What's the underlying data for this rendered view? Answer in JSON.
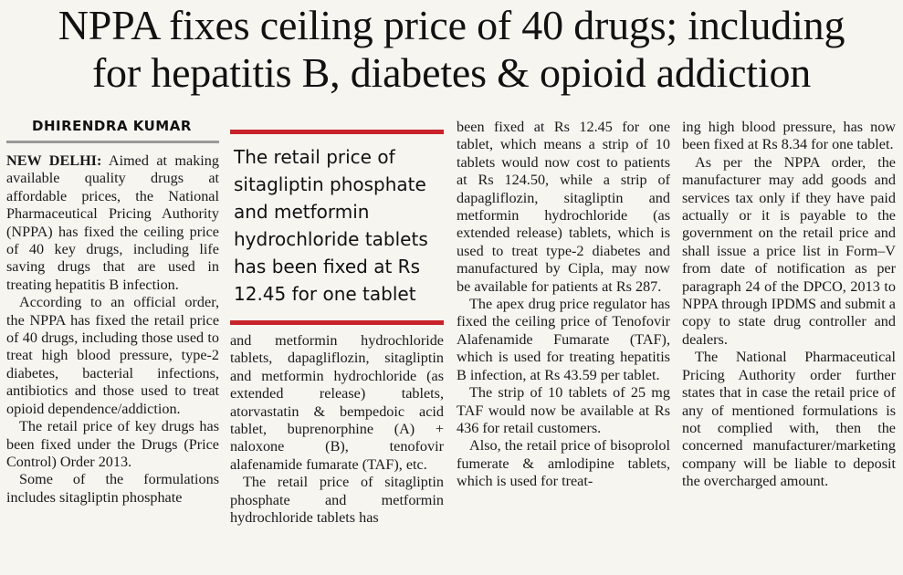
{
  "headline": {
    "line1": "NPPA fixes ceiling price of 40 drugs; including",
    "line2": "for hepatitis B, diabetes & opioid addiction"
  },
  "byline": "DHIRENDRA KUMAR",
  "dateline": "NEW DELHI:",
  "pullquote": "The retail price of sitagliptin phosphate and metformin hydrochloride tablets has been fixed at Rs 12.45 for one tablet",
  "col1": {
    "p1": " Aimed at making available quality drugs at affordable prices, the National Pharmaceutical Pricing Authority (NPPA) has fixed the ceiling price of 40 key drugs, including life saving drugs that are used in treating hepatitis B infection.",
    "p2": "According to an official order, the NPPA has fixed the retail price of 40 drugs, including those used to treat high blood pressure, type-2 diabetes, bacterial infections, antibiotics and those used to treat opioid dependence/addiction.",
    "p3": "The retail price of key drugs has been fixed under the Drugs (Price Control) Order 2013.",
    "p4": "Some of the formulations includes sitagliptin phosphate"
  },
  "col2": {
    "p1": "and metformin hydrochloride tablets, dapagliflozin, sitagliptin and metformin hydrochloride (as extended release) tablets, atorvastatin & bempedoic acid tablet, buprenorphine (A) + naloxone (B), tenofovir alafenamide fumarate (TAF), etc.",
    "p2": "The retail price of sitagliptin phosphate and metformin hydrochloride tablets has"
  },
  "col3": {
    "p1": "been fixed at Rs 12.45 for one tablet, which means a strip of 10 tablets would now cost to patients at Rs 124.50, while a strip of dapagliflozin, sitagliptin and metformin hydrochloride (as extended release) tablets, which is used to treat type-2 diabetes and manufactured by Cipla, may now be available for patients at Rs 287.",
    "p2": "The apex drug price regulator has fixed the ceiling price of Tenofovir Alafenamide Fumarate (TAF), which is used for treating hepatitis B infection, at Rs 43.59 per tablet.",
    "p3": "The strip of 10 tablets of 25 mg TAF would now be available at Rs 436 for retail customers.",
    "p4": "Also, the retail price of bisoprolol fumerate & amlodipine tablets, which is used for treat-"
  },
  "col4": {
    "p1": "ing high blood pressure, has now been fixed at Rs 8.34 for one tablet.",
    "p2": "As per the NPPA order, the manufacturer may add goods and services tax only if they have paid actually or it is payable to the government on the retail price and shall issue a price list in Form–V from date of notification as per paragraph 24 of the DPCO, 2013 to NPPA through IPDMS and submit a copy to state drug controller and dealers.",
    "p3": "The National Pharmaceutical Pricing Authority order further states that in case the retail price of any of mentioned formulations is not complied with, then the concerned manufacturer/marketing company will be liable to deposit the overcharged amount."
  },
  "colors": {
    "accent_rule": "#c8222a",
    "byline_rule": "#9a9a9a",
    "paper": "#f6f5f0"
  }
}
